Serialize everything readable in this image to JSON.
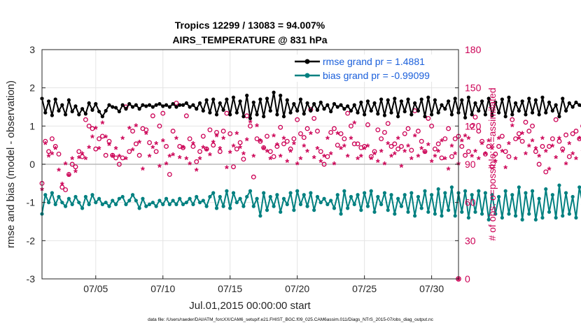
{
  "chart_data": {
    "type": "line",
    "title_line1": "Tropics 12299 / 13083 = 94.007%",
    "title_line2": "AIRS_TEMPERATURE @ 831 hPa",
    "xlabel": "Jul.01,2015 00:00:00 start",
    "ylabel_left": "rmse and bias (model - observation)",
    "ylabel_right": "# of obs: o=possible; ×=assimilated",
    "xlim": [
      1,
      32
    ],
    "ylim_left": [
      -3,
      3
    ],
    "ylim_right": [
      0,
      180
    ],
    "x_ticks": [
      5,
      10,
      15,
      20,
      25,
      30
    ],
    "x_tick_labels": [
      "07/05",
      "07/10",
      "07/15",
      "07/20",
      "07/25",
      "07/30"
    ],
    "y_ticks_left": [
      -3,
      -2,
      -1,
      0,
      1,
      2,
      3
    ],
    "y_ticks_right": [
      0,
      30,
      60,
      90,
      120,
      150,
      180
    ],
    "grid": true,
    "footnote": "data file: /Users/raeder/DAI/ATM_forcXX/CAM6_setup/f.e21.FHIST_BGC.f09_025.CAM6assim.011/Diags_NTrS_2015-07/obs_diag_output.nc",
    "x_start": 1.0,
    "x_step": 0.25,
    "series": [
      {
        "name": "rmse grand pr = 1.4881",
        "color": "#000000",
        "axis": "left",
        "values": [
          1.72,
          1.35,
          1.65,
          1.28,
          1.7,
          1.4,
          1.55,
          1.3,
          1.68,
          1.38,
          1.52,
          1.3,
          1.45,
          1.32,
          1.6,
          1.42,
          1.58,
          1.38,
          1.25,
          1.4,
          1.55,
          1.5,
          1.48,
          1.38,
          1.55,
          1.45,
          1.58,
          1.5,
          1.55,
          1.45,
          1.55,
          1.52,
          1.55,
          1.5,
          1.55,
          1.58,
          1.52,
          1.55,
          1.5,
          1.58,
          1.5,
          1.55,
          1.55,
          1.6,
          1.5,
          1.55,
          1.45,
          1.6,
          1.4,
          1.68,
          1.35,
          1.7,
          1.3,
          1.6,
          1.42,
          1.7,
          1.3,
          1.75,
          1.35,
          1.65,
          1.25,
          1.8,
          1.2,
          1.62,
          1.3,
          1.7,
          1.25,
          1.72,
          1.4,
          1.88,
          1.3,
          1.8,
          1.25,
          1.68,
          1.35,
          1.58,
          1.4,
          1.7,
          1.32,
          1.6,
          1.4,
          1.58,
          1.42,
          1.62,
          1.45,
          1.55,
          1.38,
          1.58,
          1.5,
          1.55,
          1.45,
          1.52,
          1.4,
          1.55,
          1.35,
          1.62,
          1.3,
          1.65,
          1.4,
          1.6,
          1.32,
          1.7,
          1.28,
          1.68,
          1.35,
          1.72,
          1.25,
          1.65,
          1.38,
          1.7,
          1.3,
          1.6,
          1.4,
          1.7,
          1.25,
          1.75,
          1.3,
          1.68,
          1.35,
          1.55,
          1.45,
          1.65,
          1.3,
          1.72,
          1.35,
          1.68,
          1.22,
          1.75,
          1.3,
          1.6,
          1.4,
          1.65,
          1.3,
          1.72,
          1.28,
          1.62,
          1.35,
          1.7,
          1.25,
          1.75,
          1.3,
          1.6,
          1.4,
          1.65,
          1.3,
          1.72,
          1.35,
          1.68,
          1.3,
          1.75,
          1.35,
          1.62,
          1.4,
          1.55,
          1.25,
          1.72,
          1.4,
          1.6,
          1.5,
          1.62,
          1.55,
          1.48
        ]
      },
      {
        "name": "bias grand pr = -0.99099",
        "color": "#008080",
        "axis": "left",
        "values": [
          -1.3,
          -0.8,
          -1.0,
          -0.75,
          -1.05,
          -0.85,
          -1.0,
          -1.1,
          -0.9,
          -1.05,
          -0.85,
          -1.0,
          -1.15,
          -0.85,
          -1.05,
          -0.8,
          -1.0,
          -0.9,
          -1.05,
          -1.0,
          -1.1,
          -0.95,
          -1.05,
          -0.9,
          -0.85,
          -1.05,
          -0.95,
          -0.8,
          -0.95,
          -1.15,
          -0.9,
          -1.1,
          -1.05,
          -1.0,
          -1.1,
          -0.95,
          -1.05,
          -0.9,
          -1.05,
          -0.95,
          -1.05,
          -0.9,
          -1.05,
          -1.0,
          -0.9,
          -1.05,
          -0.85,
          -1.0,
          -0.95,
          -1.1,
          -0.85,
          -0.75,
          -1.15,
          -0.85,
          -1.1,
          -0.7,
          -1.15,
          -0.75,
          -1.0,
          -0.9,
          -1.1,
          -0.85,
          -0.7,
          -1.1,
          -0.9,
          -1.35,
          -0.75,
          -1.2,
          -0.85,
          -1.1,
          -0.8,
          -1.25,
          -0.9,
          -1.05,
          -0.75,
          -1.2,
          -0.7,
          -1.05,
          -0.8,
          -1.1,
          -0.75,
          -1.2,
          -0.85,
          -1.0,
          -0.9,
          -1.05,
          -0.95,
          -1.15,
          -0.8,
          -1.3,
          -0.7,
          -1.15,
          -0.85,
          -1.05,
          -0.8,
          -1.2,
          -0.75,
          -1.1,
          -0.7,
          -1.25,
          -0.85,
          -1.05,
          -0.75,
          -1.2,
          -0.8,
          -1.3,
          -0.9,
          -1.1,
          -0.8,
          -1.25,
          -0.75,
          -1.35,
          -0.85,
          -1.15,
          -0.7,
          -1.25,
          -0.8,
          -1.3,
          -0.65,
          -1.35,
          -0.75,
          -1.2,
          -0.6,
          -1.35,
          -0.75,
          -1.25,
          -0.7,
          -1.4,
          -0.8,
          -1.25,
          -0.7,
          -1.3,
          -0.75,
          -1.45,
          -0.8,
          -1.3,
          -0.85,
          -1.4,
          -0.7,
          -1.3,
          -0.8,
          -1.35,
          -0.6,
          -1.45,
          -0.75,
          -1.3,
          -0.7,
          -1.45,
          -0.9,
          -1.4,
          -0.65,
          -1.25,
          -0.8,
          -1.4,
          -0.55,
          -1.35,
          -0.75,
          -1.3,
          -0.85,
          -1.4,
          -0.6,
          -1.05,
          -0.95,
          -1.25,
          -0.95,
          -1.25,
          -0.95,
          -1.15,
          -1.0
        ]
      },
      {
        "name": "possible",
        "color": "#cc0055",
        "axis": "right",
        "marker": "o",
        "values": [
          75,
          108,
          100,
          110,
          104,
          98,
          72,
          70,
          82,
          90,
          88,
          100,
          96,
          125,
          120,
          118,
          102,
          110,
          112,
          97,
          108,
          97,
          95,
          90,
          95,
          135,
          100,
          116,
          106,
          97,
          118,
          117,
          107,
          128,
          100,
          120,
          130,
          104,
          82,
          116,
          138,
          104,
          103,
          128,
          110,
          104,
          92,
          100,
          112,
          102,
          117,
          105,
          115,
          100,
          116,
          130,
          114,
          88,
          102,
          107,
          94,
          128,
          120,
          80,
          110,
          108,
          103,
          112,
          100,
          96,
          104,
          119,
          106,
          108,
          102,
          110,
          125,
          114,
          111,
          118,
          133,
          126,
          116,
          100,
          90,
          96,
          115,
          118,
          105,
          114,
          110,
          130,
          120,
          106,
          106,
          103,
          104,
          121,
          96,
          100,
          117,
          110,
          115,
          122,
          104,
          106,
          102,
          104,
          114,
          118,
          101,
          132,
          116,
          108,
          100,
          126,
          120,
          102,
          106,
          95,
          110,
          118,
          96,
          110,
          112,
          104,
          97,
          100,
          120,
          127,
          116,
          108,
          98,
          104,
          88,
          98,
          104,
          112,
          100,
          96,
          125,
          110,
          114,
          108,
          123,
          116,
          120,
          100,
          90,
          104,
          84,
          104,
          110,
          125,
          108,
          102,
          113,
          96,
          114,
          116,
          110,
          120,
          122
        ]
      },
      {
        "name": "assimilated",
        "color": "#cc0055",
        "axis": "right",
        "marker": "*",
        "values": [
          70,
          106,
          96,
          98,
          102,
          85,
          74,
          90,
          81,
          94,
          84,
          95,
          98,
          94,
          103,
          111,
          118,
          102,
          122,
          111,
          105,
          96,
          102,
          96,
          110,
          94,
          118,
          101,
          120,
          107,
          86,
          114,
          96,
          103,
          106,
          88,
          108,
          90,
          96,
          97,
          110,
          95,
          103,
          94,
          90,
          106,
          85,
          94,
          103,
          101,
          97,
          107,
          112,
          102,
          110,
          87,
          99,
          104,
          114,
          103,
          98,
          109,
          123,
          96,
          120,
          108,
          102,
          100,
          94,
          112,
          105,
          96,
          110,
          92,
          100,
          106,
          90,
          94,
          104,
          100,
          114,
          95,
          102,
          92,
          96,
          110,
          98,
          90,
          114,
          102,
          104,
          96,
          110,
          122,
          94,
          96,
          102,
          104,
          94,
          98,
          92,
          100,
          90,
          106,
          96,
          98,
          110,
          88,
          100,
          104,
          94,
          112,
          96,
          102,
          99,
          105,
          92,
          96,
          100,
          108,
          94,
          86,
          104,
          98,
          90,
          108,
          112,
          110,
          96,
          100,
          94,
          106,
          98,
          108,
          102,
          92,
          110,
          100,
          87,
          106,
          120,
          94,
          110,
          114,
          98,
          104,
          108,
          102,
          96,
          110,
          100,
          86,
          104,
          95,
          110,
          100,
          90,
          106,
          98,
          94,
          110,
          100,
          96
        ]
      }
    ]
  }
}
